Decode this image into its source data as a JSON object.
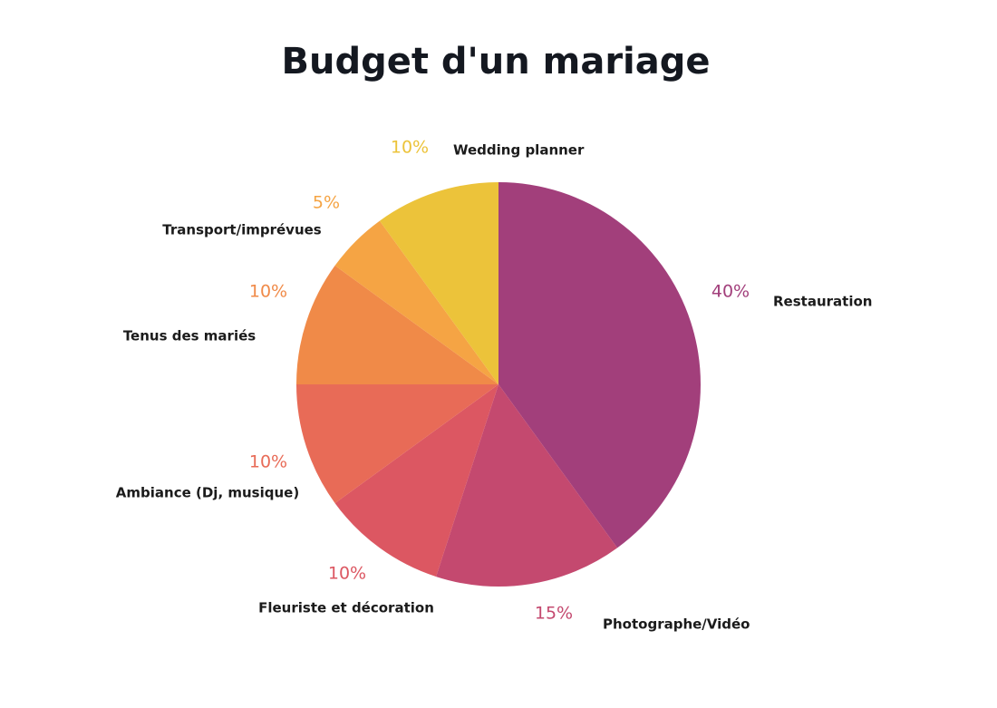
{
  "chart_data": {
    "type": "pie",
    "title": "Budget d'un mariage",
    "categories": [
      "Restauration",
      "Photographe/Vidéo",
      "Fleuriste et décoration",
      "Ambiance (Dj, musique)",
      "Tenus des mariés",
      "Transport/imprévues",
      "Wedding planner"
    ],
    "values": [
      40,
      15,
      10,
      10,
      10,
      5,
      10
    ],
    "value_labels": [
      "40%",
      "15%",
      "10%",
      "10%",
      "10%",
      "5%",
      "10%"
    ],
    "colors": [
      "#a23f7b",
      "#c4496f",
      "#dc5762",
      "#e86b57",
      "#f08a48",
      "#f5a444",
      "#ecc33a"
    ]
  }
}
